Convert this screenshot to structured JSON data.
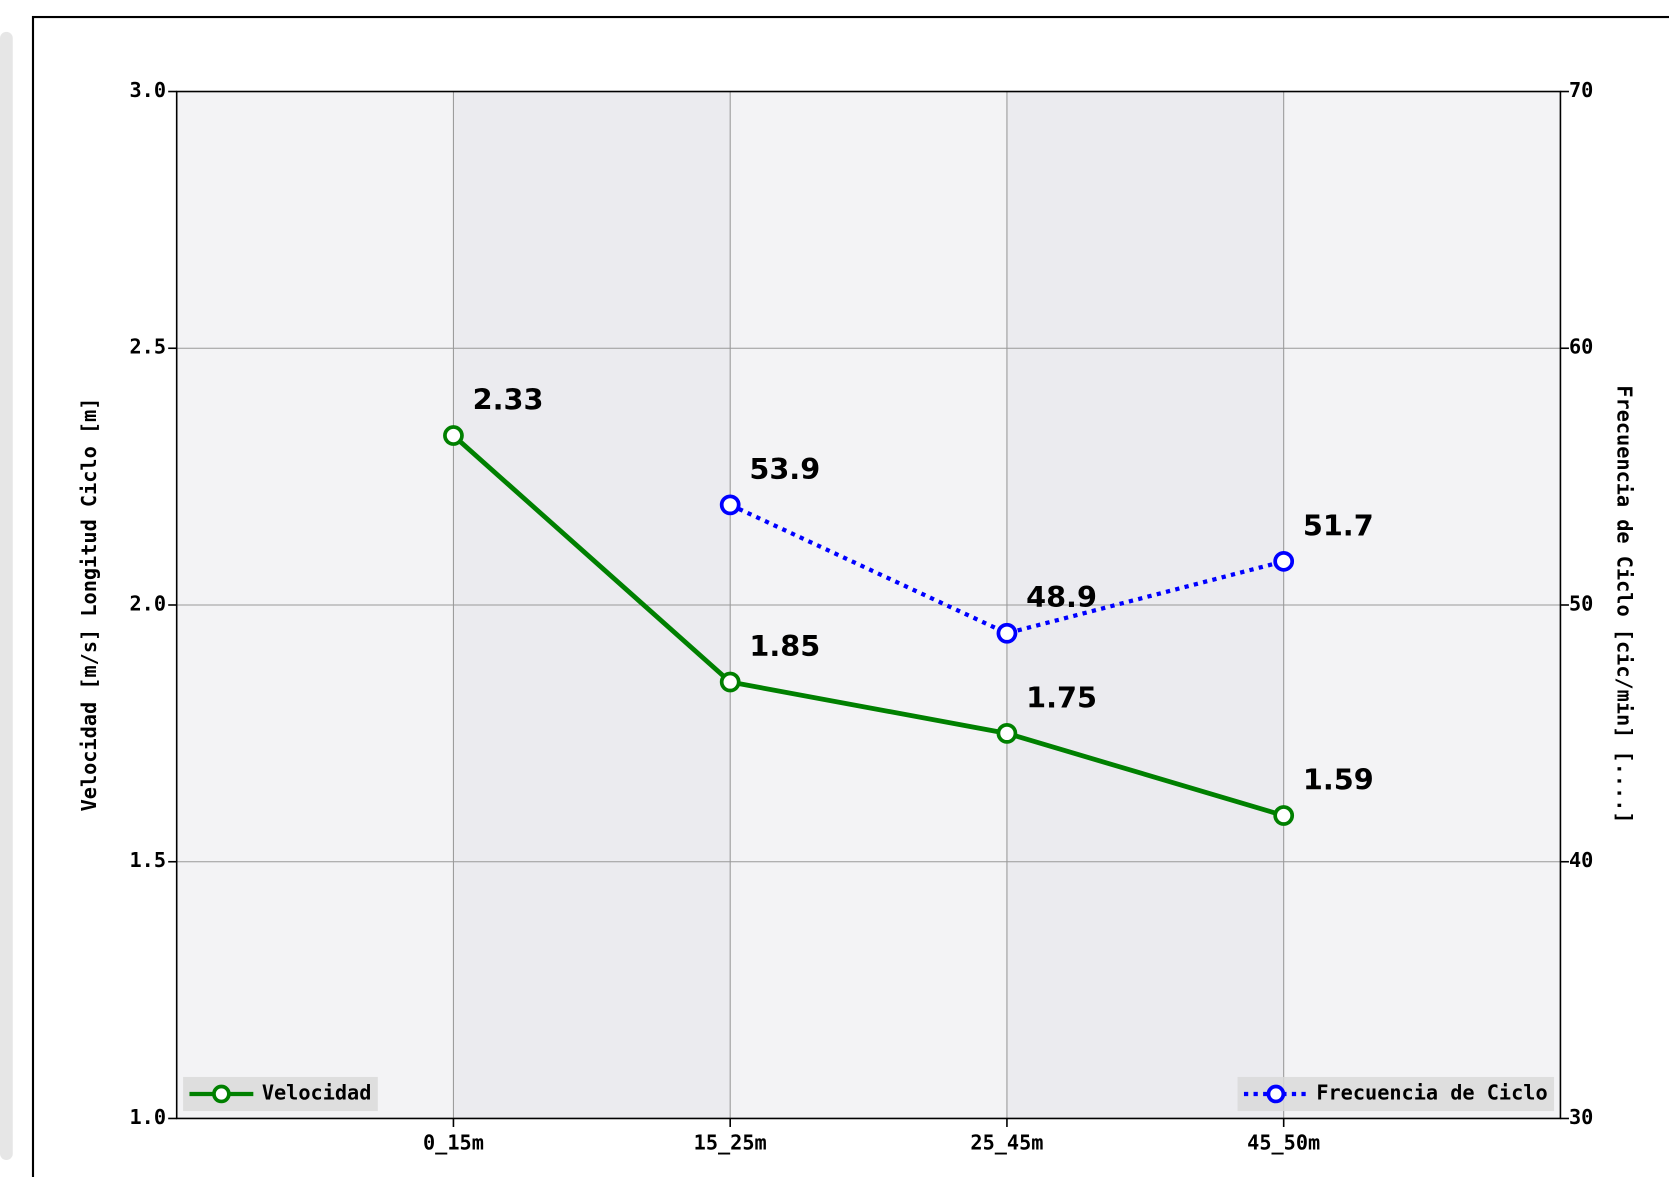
{
  "chart_data": {
    "type": "line",
    "categories": [
      "0_15m",
      "15_25m",
      "25_45m",
      "45_50m"
    ],
    "ylabel": "Velocidad [m/s]  Longitud Ciclo [m]",
    "y2label": "Frecuencia de Ciclo [cic/min] [....]",
    "ylim": [
      1,
      3
    ],
    "yticks": [
      {
        "value": 1,
        "label": "1.0"
      },
      {
        "value": 1.5,
        "label": "1.5"
      },
      {
        "value": 2,
        "label": "2.0"
      },
      {
        "value": 2.5,
        "label": "2.5"
      },
      {
        "value": 3,
        "label": "3.0"
      }
    ],
    "y2lim": [
      30,
      70
    ],
    "y2ticks": [
      30,
      40,
      50,
      60,
      70
    ],
    "grid": true,
    "series": [
      {
        "name": "Velocidad",
        "color": "#008000",
        "linestyle": "solid",
        "legend_loc": "lower left",
        "values": [
          2.33,
          1.85,
          1.75,
          1.59
        ]
      },
      {
        "name": "Frecuencia de Ciclo",
        "color": "#0000ff",
        "linestyle": "dotted",
        "axis": "y2",
        "legend_loc": "lower right",
        "values": [
          null,
          53.9,
          48.9,
          51.7
        ]
      }
    ]
  }
}
